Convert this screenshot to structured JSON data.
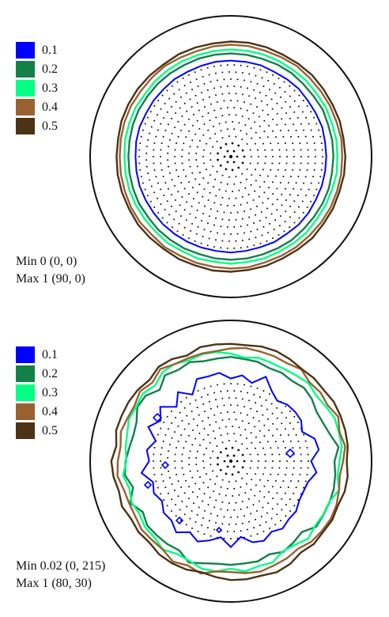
{
  "chart_data": [
    {
      "type": "contour",
      "legend": [
        {
          "label": "0.1",
          "color": "#0000ff"
        },
        {
          "label": "0.2",
          "color": "#138049"
        },
        {
          "label": "0.3",
          "color": "#00ff84"
        },
        {
          "label": "0.4",
          "color": "#9a6130"
        },
        {
          "label": "0.5",
          "color": "#4c3216"
        }
      ],
      "min_label": "Min 0 (0, 0)",
      "max_label": "Max 1 (90, 0)",
      "outline_color": "#111111",
      "dot_color": "#111111"
    },
    {
      "type": "contour",
      "legend": [
        {
          "label": "0.1",
          "color": "#0000ff"
        },
        {
          "label": "0.2",
          "color": "#138049"
        },
        {
          "label": "0.3",
          "color": "#00ff84"
        },
        {
          "label": "0.4",
          "color": "#9a6130"
        },
        {
          "label": "0.5",
          "color": "#4c3216"
        }
      ],
      "min_label": "Min 0.02 (0, 215)",
      "max_label": "Max 1 (80, 30)",
      "outline_color": "#111111",
      "dot_color": "#111111"
    }
  ]
}
